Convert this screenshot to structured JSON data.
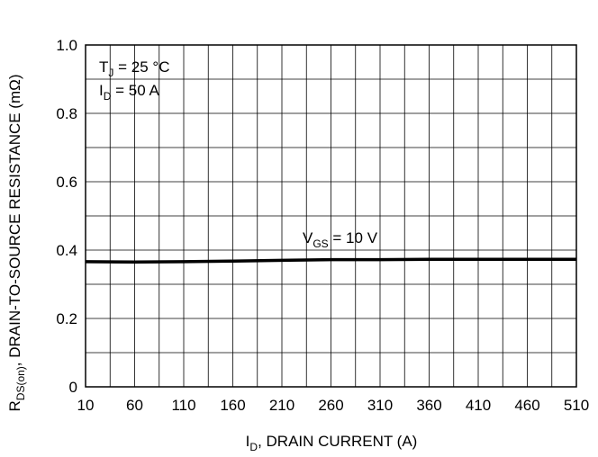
{
  "chart_data": {
    "type": "line",
    "xlabel": {
      "main": "I",
      "sub": "D",
      "rest": ", DRAIN CURRENT (A)"
    },
    "ylabel": {
      "main": "R",
      "sub": "DS(on)",
      "rest": ", DRAIN-TO-SOURCE RESISTANCE (mΩ)"
    },
    "xlim": [
      10,
      510
    ],
    "ylim": [
      0,
      1.0
    ],
    "x_ticks": [
      10,
      60,
      110,
      160,
      210,
      260,
      310,
      360,
      410,
      460,
      510
    ],
    "x_tick_labels": [
      "10",
      "60",
      "110",
      "160",
      "210",
      "260",
      "310",
      "360",
      "410",
      "460",
      "510"
    ],
    "y_ticks": [
      0,
      0.2,
      0.4,
      0.6,
      0.8,
      1.0
    ],
    "y_tick_labels": [
      "0",
      "0.2",
      "0.4",
      "0.6",
      "0.8",
      "1.0"
    ],
    "grid": true,
    "annotations": [
      {
        "main": "T",
        "sub": "J",
        "rest": " = 25 °C"
      },
      {
        "main": "I",
        "sub": "D",
        "rest": " = 50 A"
      }
    ],
    "series": [
      {
        "name": {
          "main": "V",
          "sub": "GS",
          "rest": " = 10 V"
        },
        "x": [
          10,
          60,
          110,
          160,
          210,
          260,
          310,
          360,
          410,
          460,
          510
        ],
        "y": [
          0.366,
          0.365,
          0.366,
          0.368,
          0.37,
          0.372,
          0.372,
          0.373,
          0.373,
          0.373,
          0.373
        ],
        "color": "#000000"
      }
    ]
  }
}
